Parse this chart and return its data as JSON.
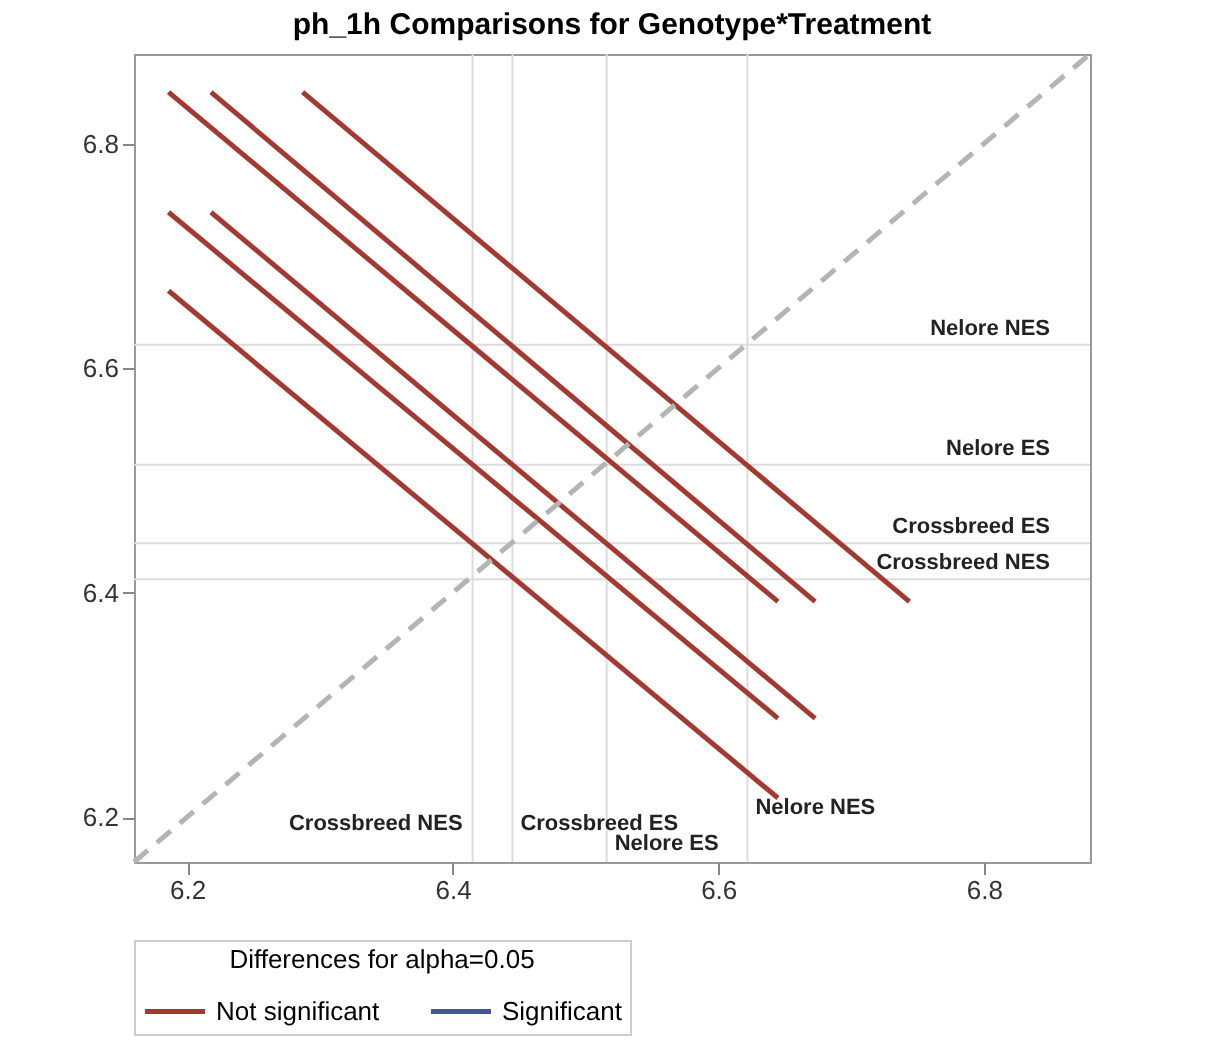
{
  "chart_data": {
    "type": "line",
    "title": "ph_1h Comparisons for Genotype*Treatment",
    "legend_title": "Differences for alpha=0.05",
    "legend": "bottom",
    "grid": false,
    "xlim": [
      6.16,
      6.88
    ],
    "ylim": [
      6.16,
      6.88
    ],
    "xticks": [
      6.2,
      6.4,
      6.6,
      6.8
    ],
    "yticks": [
      6.2,
      6.4,
      6.6,
      6.8
    ],
    "series": [
      {
        "name": "Not significant",
        "color": "#a23a32",
        "x": [
          6.186,
          6.645
        ],
        "values": [
          6.846,
          6.392
        ]
      },
      {
        "color": "#a23a32",
        "x": [
          6.218,
          6.673
        ],
        "values": [
          6.846,
          6.392
        ]
      },
      {
        "color": "#a23a32",
        "x": [
          6.287,
          6.744
        ],
        "values": [
          6.846,
          6.392
        ]
      },
      {
        "color": "#a23a32",
        "x": [
          6.186,
          6.645
        ],
        "values": [
          6.739,
          6.288
        ]
      },
      {
        "color": "#a23a32",
        "x": [
          6.218,
          6.673
        ],
        "values": [
          6.739,
          6.288
        ]
      },
      {
        "color": "#a23a32",
        "x": [
          6.186,
          6.645
        ],
        "values": [
          6.669,
          6.217
        ]
      },
      {
        "color": "#b4b4b4",
        "line_style": "dashed",
        "x": [
          6.16,
          6.88
        ],
        "values": [
          6.16,
          6.88
        ]
      },
      {
        "name": "Significant",
        "color": "#445694"
      }
    ],
    "ref_lines": [
      {
        "axis": "x",
        "value": 6.415,
        "label": "Crossbreed NES",
        "color": "#dcdcdc"
      },
      {
        "axis": "x",
        "value": 6.445,
        "label": "Crossbreed ES",
        "color": "#dcdcdc"
      },
      {
        "axis": "x",
        "value": 6.516,
        "label": "Nelore ES",
        "color": "#dcdcdc"
      },
      {
        "axis": "x",
        "value": 6.622,
        "label": "Nelore NES",
        "color": "#dcdcdc"
      },
      {
        "axis": "y",
        "value": 6.621,
        "label": "Nelore NES",
        "color": "#dcdcdc"
      },
      {
        "axis": "y",
        "value": 6.514,
        "label": "Nelore ES",
        "color": "#dcdcdc"
      },
      {
        "axis": "y",
        "value": 6.444,
        "label": "Crossbreed ES",
        "color": "#dcdcdc"
      },
      {
        "axis": "y",
        "value": 6.412,
        "label": "Crossbreed NES",
        "color": "#dcdcdc"
      }
    ]
  }
}
